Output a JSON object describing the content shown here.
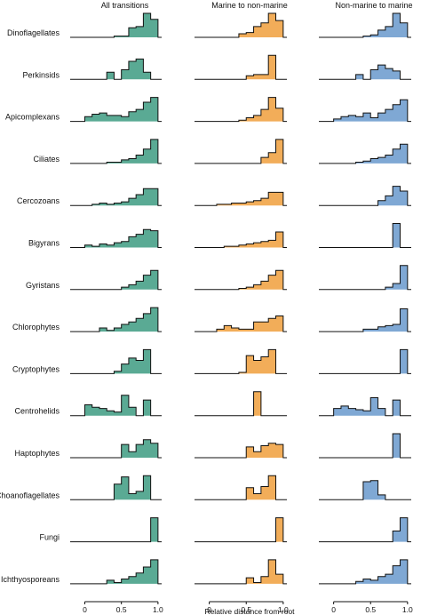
{
  "chart_data": {
    "type": "histogram-grid",
    "column_titles": [
      "All transitions",
      "Marine to non-marine",
      "Non-marine to marine"
    ],
    "column_colors": [
      "#5aaa94",
      "#f2ad59",
      "#7fa8d4"
    ],
    "xlabel": "Relative distance from root",
    "xlim": [
      -0.2,
      1.05
    ],
    "xticks": [
      0,
      0.5,
      1.0
    ],
    "xtick_labels": [
      "0",
      "0.5",
      "1.0"
    ],
    "bins": [
      0.0,
      0.1,
      0.2,
      0.3,
      0.4,
      0.5,
      0.6,
      0.7,
      0.8,
      0.9,
      1.0
    ],
    "rows": [
      {
        "label": "Dinoflagellates",
        "values": [
          [
            0,
            0,
            0,
            0,
            0.05,
            0.05,
            0.4,
            0.45,
            1.0,
            0.75
          ],
          [
            0,
            0,
            0,
            0,
            0.15,
            0.2,
            0.45,
            0.6,
            1.0,
            0.7
          ],
          [
            0,
            0,
            0,
            0,
            0.05,
            0.1,
            0.3,
            0.45,
            1.0,
            0.6
          ]
        ]
      },
      {
        "label": "Perkinsids",
        "values": [
          [
            0,
            0,
            0,
            0.3,
            0,
            0.4,
            0.75,
            0.85,
            0.3,
            0
          ],
          [
            0,
            0,
            0,
            0,
            0,
            0.15,
            0.2,
            0.2,
            1.0,
            0
          ],
          [
            0,
            0,
            0,
            0.2,
            0,
            0.4,
            0.6,
            0.45,
            0.35,
            0
          ]
        ]
      },
      {
        "label": "Apicomplexans",
        "values": [
          [
            0.2,
            0.3,
            0.35,
            0.25,
            0.25,
            0.2,
            0.4,
            0.5,
            0.8,
            1.0
          ],
          [
            0,
            0,
            0,
            0,
            0.05,
            0.15,
            0.25,
            0.5,
            1.0,
            0.55
          ],
          [
            0.1,
            0.2,
            0.25,
            0.2,
            0.35,
            0.15,
            0.35,
            0.5,
            0.7,
            0.9
          ]
        ]
      },
      {
        "label": "Ciliates",
        "values": [
          [
            0,
            0,
            0,
            0.05,
            0.05,
            0.15,
            0.2,
            0.35,
            0.6,
            1.0
          ],
          [
            0,
            0,
            0,
            0,
            0,
            0,
            0,
            0.25,
            0.45,
            1.0
          ],
          [
            0,
            0,
            0,
            0.05,
            0.1,
            0.2,
            0.25,
            0.35,
            0.6,
            0.8
          ]
        ]
      },
      {
        "label": "Cercozoans",
        "values": [
          [
            0,
            0.05,
            0.1,
            0.05,
            0.1,
            0.15,
            0.3,
            0.45,
            0.7,
            0.7
          ],
          [
            0,
            0.05,
            0.05,
            0.1,
            0.1,
            0.15,
            0.2,
            0.3,
            0.55,
            0.55
          ],
          [
            0,
            0,
            0,
            0,
            0,
            0,
            0.2,
            0.4,
            0.8,
            0.6
          ]
        ]
      },
      {
        "label": "Bigyrans",
        "values": [
          [
            0.1,
            0.05,
            0.15,
            0.1,
            0.2,
            0.25,
            0.45,
            0.55,
            0.75,
            0.7
          ],
          [
            0,
            0,
            0.05,
            0.05,
            0.1,
            0.15,
            0.2,
            0.25,
            0.3,
            0.65
          ],
          [
            0,
            0,
            0,
            0,
            0,
            0,
            0,
            0,
            1.0,
            0
          ]
        ]
      },
      {
        "label": "Gyristans",
        "values": [
          [
            0,
            0,
            0,
            0,
            0,
            0.1,
            0.2,
            0.35,
            0.6,
            0.8
          ],
          [
            0,
            0,
            0,
            0,
            0.05,
            0.1,
            0.2,
            0.35,
            0.6,
            0.8
          ],
          [
            0,
            0,
            0,
            0,
            0,
            0,
            0,
            0.1,
            0.25,
            1.0
          ]
        ]
      },
      {
        "label": "Chlorophytes",
        "values": [
          [
            0,
            0,
            0.15,
            0.05,
            0.15,
            0.3,
            0.4,
            0.55,
            0.75,
            1.0
          ],
          [
            0,
            0.1,
            0.25,
            0.15,
            0.1,
            0.1,
            0.4,
            0.4,
            0.55,
            0.65
          ],
          [
            0,
            0,
            0,
            0,
            0.1,
            0.1,
            0.2,
            0.25,
            0.3,
            0.95
          ]
        ]
      },
      {
        "label": "Cryptophytes",
        "values": [
          [
            0,
            0,
            0,
            0,
            0.1,
            0.4,
            0.65,
            0.55,
            1.0,
            0
          ],
          [
            0,
            0,
            0,
            0,
            0.05,
            0.75,
            0.55,
            0.7,
            1.0,
            0
          ],
          [
            0,
            0,
            0,
            0,
            0,
            0,
            0,
            0,
            0,
            1.0
          ]
        ]
      },
      {
        "label": "Centrohelids",
        "values": [
          [
            0.45,
            0.35,
            0.3,
            0.2,
            0.15,
            0.85,
            0.35,
            0,
            0.65,
            0
          ],
          [
            0,
            0,
            0,
            0,
            0,
            0,
            1.0,
            0,
            0,
            0
          ],
          [
            0.3,
            0.4,
            0.3,
            0.25,
            0.2,
            0.75,
            0.3,
            0,
            0.65,
            0
          ]
        ]
      },
      {
        "label": "Haptophytes",
        "values": [
          [
            0,
            0,
            0,
            0,
            0,
            0.55,
            0.25,
            0.55,
            0.75,
            0.6
          ],
          [
            0,
            0,
            0,
            0,
            0,
            0.45,
            0.25,
            0.5,
            0.6,
            0.55
          ],
          [
            0,
            0,
            0,
            0,
            0,
            0,
            0,
            0,
            1.0,
            0
          ]
        ]
      },
      {
        "label": "Choanoflagellates",
        "values": [
          [
            0,
            0,
            0,
            0,
            0.65,
            0.95,
            0.25,
            0.35,
            1.0,
            0
          ],
          [
            0,
            0,
            0,
            0,
            0,
            0.5,
            0.25,
            0.55,
            1.0,
            0
          ],
          [
            0,
            0,
            0,
            0,
            0.75,
            0.8,
            0.2,
            0,
            0,
            0
          ]
        ]
      },
      {
        "label": "Fungi",
        "values": [
          [
            0,
            0,
            0,
            0,
            0,
            0,
            0,
            0,
            0,
            1.0
          ],
          [
            0,
            0,
            0,
            0,
            0,
            0,
            0,
            0,
            0,
            1.0
          ],
          [
            0,
            0,
            0,
            0,
            0,
            0,
            0,
            0,
            0.45,
            1.0
          ]
        ]
      },
      {
        "label": "Ichthyosporeans",
        "values": [
          [
            0,
            0,
            0,
            0.15,
            0.05,
            0.2,
            0.3,
            0.45,
            0.7,
            1.0
          ],
          [
            0,
            0,
            0,
            0,
            0,
            0.25,
            0.05,
            0.3,
            1.0,
            0.4
          ],
          [
            0,
            0,
            0,
            0.1,
            0.2,
            0.15,
            0.3,
            0.4,
            0.75,
            1.0
          ]
        ]
      }
    ]
  }
}
